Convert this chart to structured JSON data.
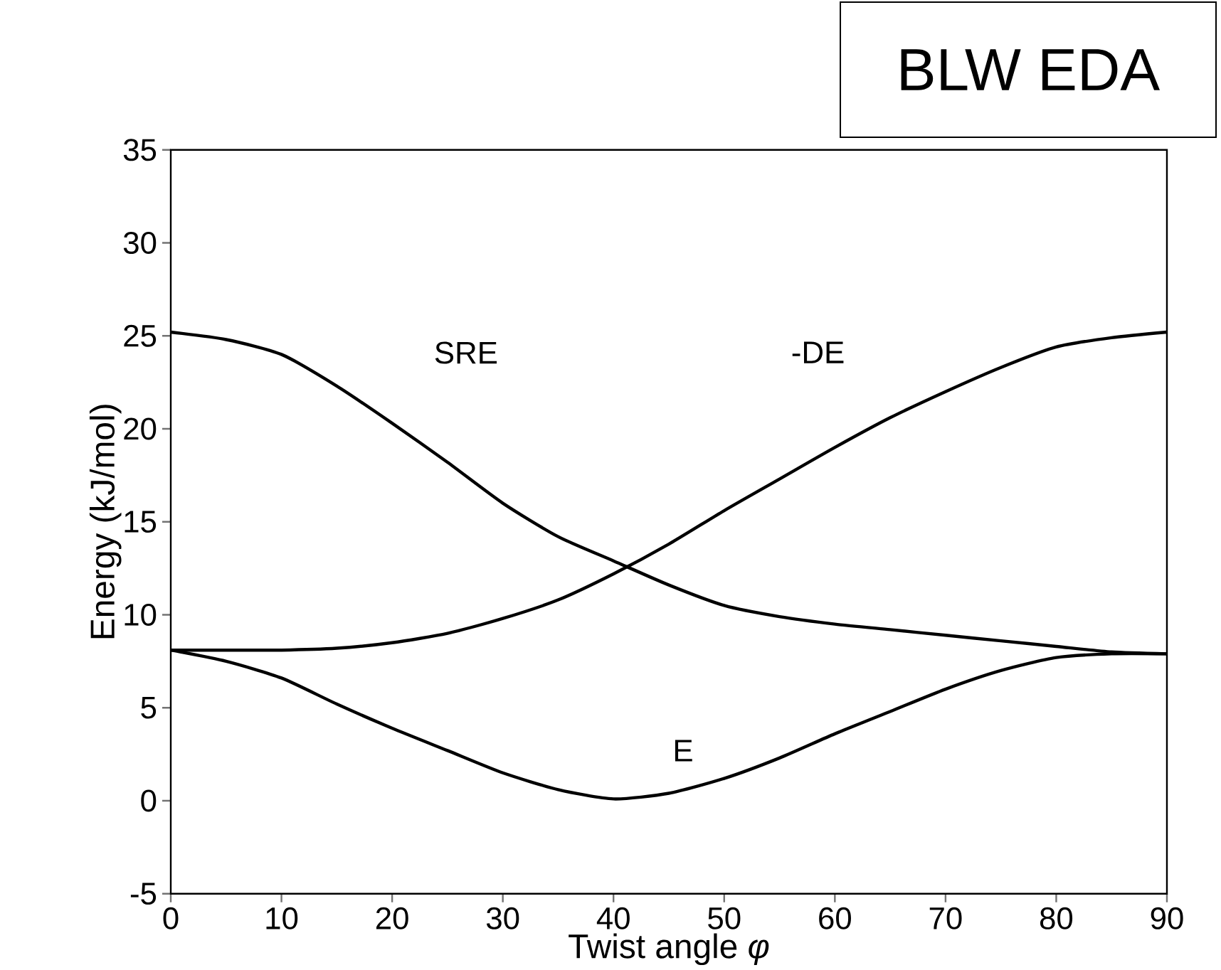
{
  "chart_data": {
    "type": "line",
    "title": "BLW EDA",
    "xlabel": "Twist angle *φ*",
    "ylabel": "Energy (kJ/mol)",
    "x": [
      0,
      5,
      10,
      15,
      20,
      25,
      30,
      35,
      40,
      45,
      50,
      55,
      60,
      65,
      70,
      75,
      80,
      85,
      90
    ],
    "series": [
      {
        "name": "SRE",
        "color": "#000000",
        "values": [
          25.2,
          24.8,
          24.0,
          22.3,
          20.3,
          18.2,
          16.0,
          14.2,
          12.9,
          11.6,
          10.5,
          9.9,
          9.5,
          9.2,
          8.9,
          8.6,
          8.3,
          8.0,
          7.9
        ]
      },
      {
        "name": "-DE",
        "color": "#000000",
        "values": [
          8.1,
          8.1,
          8.1,
          8.2,
          8.5,
          9.0,
          9.8,
          10.8,
          12.2,
          13.8,
          15.6,
          17.3,
          19.0,
          20.6,
          22.0,
          23.3,
          24.4,
          24.9,
          25.2
        ]
      },
      {
        "name": "E",
        "color": "#000000",
        "values": [
          8.1,
          7.5,
          6.6,
          5.2,
          3.9,
          2.7,
          1.5,
          0.6,
          0.1,
          0.4,
          1.2,
          2.3,
          3.6,
          4.8,
          6.0,
          7.0,
          7.7,
          7.9,
          7.9
        ]
      }
    ],
    "xlim": [
      0,
      90
    ],
    "xticks": [
      0,
      10,
      20,
      30,
      40,
      50,
      60,
      70,
      80,
      90
    ],
    "ylim": [
      -5,
      35
    ],
    "yticks": [
      -5,
      0,
      5,
      10,
      15,
      20,
      25,
      30,
      35
    ],
    "grid": false,
    "legend": false,
    "marker": "none",
    "line_style": "solid"
  }
}
